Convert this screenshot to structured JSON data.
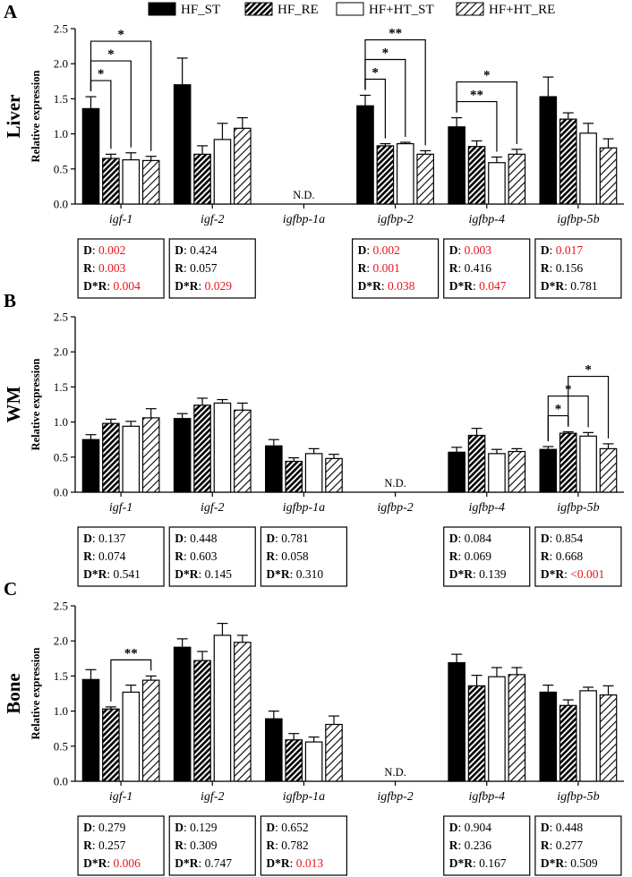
{
  "legend": [
    "HF_ST",
    "HF_RE",
    "HF+HT_ST",
    "HF+HT_RE"
  ],
  "stats_labels": {
    "d": "D",
    "r": "R",
    "dr": "D*R"
  },
  "colors": {
    "significant": "#e8141b",
    "text": "#000000"
  },
  "chart_data": [
    {
      "type": "bar",
      "panel": "A",
      "title": "Liver",
      "ylabel": "Relative expression",
      "ylim": [
        0,
        2.5
      ],
      "yticks": [
        "0.0",
        "0.5",
        "1.0",
        "1.5",
        "2.0",
        "2.5"
      ],
      "categories": [
        "igf-1",
        "igf-2",
        "igfbp-1a",
        "igfbp-2",
        "igfbp-4",
        "igfbp-5b"
      ],
      "series": [
        {
          "name": "HF_ST",
          "values": [
            1.36,
            1.7,
            null,
            1.4,
            1.1,
            1.53
          ],
          "errors": [
            0.17,
            0.38,
            null,
            0.15,
            0.13,
            0.28
          ]
        },
        {
          "name": "HF_RE",
          "values": [
            0.65,
            0.71,
            null,
            0.83,
            0.82,
            1.21
          ],
          "errors": [
            0.06,
            0.12,
            null,
            0.03,
            0.08,
            0.09
          ]
        },
        {
          "name": "HF+HT_ST",
          "values": [
            0.63,
            0.92,
            null,
            0.86,
            0.59,
            1.01
          ],
          "errors": [
            0.1,
            0.23,
            null,
            0.02,
            0.08,
            0.14
          ]
        },
        {
          "name": "HF+HT_RE",
          "values": [
            0.62,
            1.08,
            null,
            0.71,
            0.71,
            0.8
          ],
          "errors": [
            0.06,
            0.15,
            null,
            0.05,
            0.07,
            0.13
          ]
        }
      ],
      "nd": [
        {
          "category": "igfbp-1a",
          "label": "N.D."
        }
      ],
      "significance": [
        {
          "category": "igf-1",
          "from": 0,
          "to": 1,
          "label": "*"
        },
        {
          "category": "igf-1",
          "from": 0,
          "to": 2,
          "label": "*"
        },
        {
          "category": "igf-1",
          "from": 0,
          "to": 3,
          "label": "*"
        },
        {
          "category": "igfbp-2",
          "from": 0,
          "to": 1,
          "label": "*"
        },
        {
          "category": "igfbp-2",
          "from": 0,
          "to": 2,
          "label": "*"
        },
        {
          "category": "igfbp-2",
          "from": 0,
          "to": 3,
          "label": "**"
        },
        {
          "category": "igfbp-4",
          "from": 0,
          "to": 2,
          "label": "**"
        },
        {
          "category": "igfbp-4",
          "from": 0,
          "to": 3,
          "label": "*"
        }
      ],
      "stats": [
        {
          "category": "igf-1",
          "d": "0.002",
          "r": "0.003",
          "dr": "0.004",
          "d_sig": true,
          "r_sig": true,
          "dr_sig": true
        },
        {
          "category": "igf-2",
          "d": "0.424",
          "r": "0.057",
          "dr": "0.029",
          "d_sig": false,
          "r_sig": false,
          "dr_sig": true
        },
        {
          "category": "igfbp-2",
          "d": "0.002",
          "r": "0.001",
          "dr": "0.038",
          "d_sig": true,
          "r_sig": true,
          "dr_sig": true
        },
        {
          "category": "igfbp-4",
          "d": "0.003",
          "r": "0.416",
          "dr": "0.047",
          "d_sig": true,
          "r_sig": false,
          "dr_sig": true
        },
        {
          "category": "igfbp-5b",
          "d": "0.017",
          "r": "0.156",
          "dr": "0.781",
          "d_sig": true,
          "r_sig": false,
          "dr_sig": false
        }
      ]
    },
    {
      "type": "bar",
      "panel": "B",
      "title": "WM",
      "ylabel": "Relative expression",
      "ylim": [
        0,
        2.5
      ],
      "yticks": [
        "0.0",
        "0.5",
        "1.0",
        "1.5",
        "2.0",
        "2.5"
      ],
      "categories": [
        "igf-1",
        "igf-2",
        "igfbp-1a",
        "igfbp-2",
        "igfbp-4",
        "igfbp-5b"
      ],
      "series": [
        {
          "name": "HF_ST",
          "values": [
            0.75,
            1.05,
            0.66,
            null,
            0.57,
            0.61
          ],
          "errors": [
            0.07,
            0.07,
            0.09,
            null,
            0.07,
            0.04
          ]
        },
        {
          "name": "HF_RE",
          "values": [
            0.98,
            1.24,
            0.44,
            null,
            0.81,
            0.84
          ],
          "errors": [
            0.06,
            0.1,
            0.05,
            null,
            0.1,
            0.02
          ]
        },
        {
          "name": "HF+HT_ST",
          "values": [
            0.94,
            1.27,
            0.55,
            null,
            0.55,
            0.8
          ],
          "errors": [
            0.07,
            0.05,
            0.07,
            null,
            0.06,
            0.05
          ]
        },
        {
          "name": "HF+HT_RE",
          "values": [
            1.06,
            1.17,
            0.48,
            null,
            0.58,
            0.62
          ],
          "errors": [
            0.13,
            0.1,
            0.06,
            null,
            0.04,
            0.07
          ]
        }
      ],
      "nd": [
        {
          "category": "igfbp-2",
          "label": "N.D."
        }
      ],
      "significance": [
        {
          "category": "igfbp-5b",
          "from": 0,
          "to": 1,
          "label": "*"
        },
        {
          "category": "igfbp-5b",
          "from": 0,
          "to": 2,
          "label": "*"
        },
        {
          "category": "igfbp-5b",
          "from": 1,
          "to": 3,
          "label": "*"
        }
      ],
      "stats": [
        {
          "category": "igf-1",
          "d": "0.137",
          "r": "0.074",
          "dr": "0.541",
          "d_sig": false,
          "r_sig": false,
          "dr_sig": false
        },
        {
          "category": "igf-2",
          "d": "0.448",
          "r": "0.603",
          "dr": "0.145",
          "d_sig": false,
          "r_sig": false,
          "dr_sig": false
        },
        {
          "category": "igfbp-1a",
          "d": "0.781",
          "r": "0.058",
          "dr": "0.310",
          "d_sig": false,
          "r_sig": false,
          "dr_sig": false
        },
        {
          "category": "igfbp-4",
          "d": "0.084",
          "r": "0.069",
          "dr": "0.139",
          "d_sig": false,
          "r_sig": false,
          "dr_sig": false
        },
        {
          "category": "igfbp-5b",
          "d": "0.854",
          "r": "0.668",
          "dr": "<0.001",
          "d_sig": false,
          "r_sig": false,
          "dr_sig": true
        }
      ]
    },
    {
      "type": "bar",
      "panel": "C",
      "title": "Bone",
      "ylabel": "Relative expression",
      "ylim": [
        0,
        2.5
      ],
      "yticks": [
        "0.0",
        "0.5",
        "1.0",
        "1.5",
        "2.0",
        "2.5"
      ],
      "categories": [
        "igf-1",
        "igf-2",
        "igfbp-1a",
        "igfbp-2",
        "igfbp-4",
        "igfbp-5b"
      ],
      "series": [
        {
          "name": "HF_ST",
          "values": [
            1.45,
            1.91,
            0.89,
            null,
            1.69,
            1.27
          ],
          "errors": [
            0.14,
            0.12,
            0.11,
            null,
            0.12,
            0.1
          ]
        },
        {
          "name": "HF_RE",
          "values": [
            1.03,
            1.72,
            0.59,
            null,
            1.36,
            1.08
          ],
          "errors": [
            0.03,
            0.13,
            0.09,
            null,
            0.15,
            0.08
          ]
        },
        {
          "name": "HF+HT_ST",
          "values": [
            1.27,
            2.08,
            0.56,
            null,
            1.49,
            1.29
          ],
          "errors": [
            0.1,
            0.17,
            0.07,
            null,
            0.13,
            0.05
          ]
        },
        {
          "name": "HF+HT_RE",
          "values": [
            1.44,
            1.98,
            0.81,
            null,
            1.52,
            1.23
          ],
          "errors": [
            0.06,
            0.1,
            0.12,
            null,
            0.1,
            0.13
          ]
        }
      ],
      "nd": [
        {
          "category": "igfbp-2",
          "label": "N.D."
        }
      ],
      "significance": [
        {
          "category": "igf-1",
          "from": 1,
          "to": 3,
          "label": "**"
        }
      ],
      "stats": [
        {
          "category": "igf-1",
          "d": "0.279",
          "r": "0.257",
          "dr": "0.006",
          "d_sig": false,
          "r_sig": false,
          "dr_sig": true
        },
        {
          "category": "igf-2",
          "d": "0.129",
          "r": "0.309",
          "dr": "0.747",
          "d_sig": false,
          "r_sig": false,
          "dr_sig": false
        },
        {
          "category": "igfbp-1a",
          "d": "0.652",
          "r": "0.782",
          "dr": "0.013",
          "d_sig": false,
          "r_sig": false,
          "dr_sig": true
        },
        {
          "category": "igfbp-4",
          "d": "0.904",
          "r": "0.236",
          "dr": "0.167",
          "d_sig": false,
          "r_sig": false,
          "dr_sig": false
        },
        {
          "category": "igfbp-5b",
          "d": "0.448",
          "r": "0.277",
          "dr": "0.509",
          "d_sig": false,
          "r_sig": false,
          "dr_sig": false
        }
      ]
    }
  ]
}
